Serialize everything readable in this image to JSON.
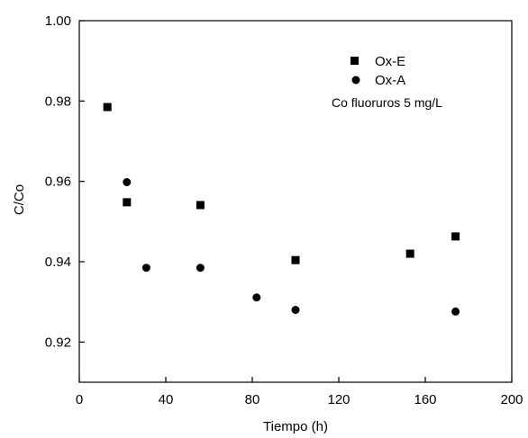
{
  "chart_data": {
    "type": "scatter",
    "xlabel": "Tiempo (h)",
    "ylabel": "C/Co",
    "xlim": [
      0,
      200
    ],
    "ylim": [
      0.91,
      1.0
    ],
    "xticks": [
      0,
      40,
      80,
      120,
      160,
      200
    ],
    "yticks": [
      0.92,
      0.94,
      0.96,
      0.98,
      1.0
    ],
    "xtick_labels": [
      "0",
      "40",
      "80",
      "120",
      "160",
      "200"
    ],
    "ytick_labels": [
      "0.92",
      "0.94",
      "0.96",
      "0.98",
      "1.00"
    ],
    "grid": false,
    "legend_placement": "top-right",
    "annotation": "Co fluoruros 5 mg/L",
    "series": [
      {
        "name": "Ox-E",
        "marker": "square",
        "color": "#000000",
        "points": [
          {
            "x": 13,
            "y": 0.9785
          },
          {
            "x": 22,
            "y": 0.9548
          },
          {
            "x": 56,
            "y": 0.9541
          },
          {
            "x": 100,
            "y": 0.9404
          },
          {
            "x": 153,
            "y": 0.942
          },
          {
            "x": 174,
            "y": 0.9463
          }
        ]
      },
      {
        "name": "Ox-A",
        "marker": "circle",
        "color": "#000000",
        "points": [
          {
            "x": 22,
            "y": 0.9598
          },
          {
            "x": 31,
            "y": 0.9385
          },
          {
            "x": 56,
            "y": 0.9385
          },
          {
            "x": 82,
            "y": 0.9311
          },
          {
            "x": 100,
            "y": 0.928
          },
          {
            "x": 174,
            "y": 0.9276
          }
        ]
      }
    ]
  }
}
